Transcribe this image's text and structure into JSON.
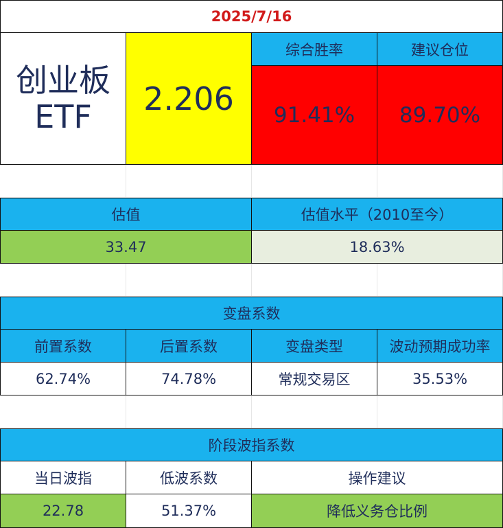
{
  "header": {
    "date": "2025/7/16",
    "name_line1": "创业板",
    "name_line2": "ETF",
    "price": "2.206",
    "win_rate_label": "综合胜率",
    "position_label": "建议仓位",
    "win_rate_value": "91.41%",
    "position_value": "89.70%"
  },
  "valuation": {
    "label": "估值",
    "level_label": "估值水平（2010至今）",
    "value": "33.47",
    "level_value": "18.63%"
  },
  "reversal": {
    "title": "变盘系数",
    "headers": [
      "前置系数",
      "后置系数",
      "变盘类型",
      "波动预期成功率"
    ],
    "values": [
      "62.74%",
      "74.78%",
      "常规交易区",
      "35.53%"
    ]
  },
  "stage": {
    "title": "阶段波指系数",
    "headers": [
      "当日波指",
      "低波系数",
      "操作建议"
    ],
    "values": [
      "22.78",
      "51.37%",
      "降低义务仓比例"
    ]
  },
  "colors": {
    "blue_header": "#1ab2ee",
    "green_value": "#93cf55",
    "red_highlight": "#ff0000",
    "yellow_highlight": "#ffff00",
    "date_red": "#d11a1a",
    "text_navy": "#1f2d5a"
  }
}
